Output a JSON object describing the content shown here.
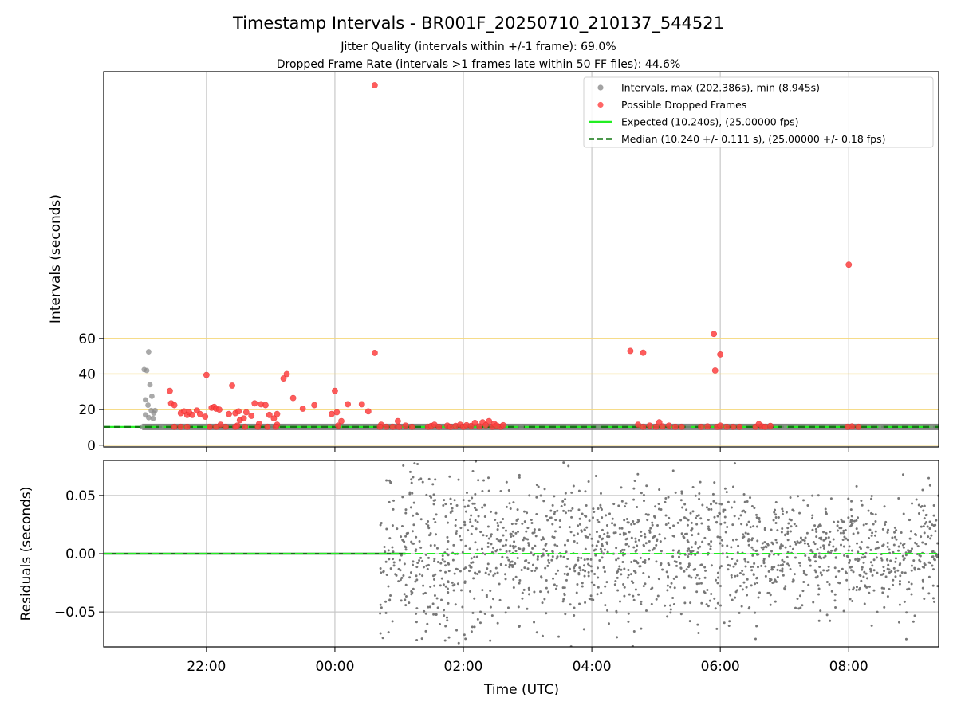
{
  "chart_data": [
    {
      "type": "scatter",
      "title": "Timestamp Intervals - BR001F_20250710_210137_544521",
      "subtitle_lines": [
        "Jitter Quality (intervals within +/-1 frame): 69.0%",
        "Dropped Frame Rate (intervals >1 frames late within 50 FF files): 44.6%"
      ],
      "ylabel": "Intervals (seconds)",
      "xlim": [
        20.4,
        33.4
      ],
      "ylim": [
        -1,
        210
      ],
      "yticks": [
        0,
        20,
        40,
        60
      ],
      "ytick_labels": [
        "0",
        "20",
        "40",
        "60"
      ],
      "xticks": [
        22,
        24,
        26,
        28,
        30,
        32
      ],
      "grid_x": true,
      "hlines": [
        0,
        10.24,
        20,
        40,
        60
      ],
      "hline_color": "#f5d77a",
      "legend_position": "upper right",
      "legend": [
        {
          "label": "Intervals, max (202.386s), min (8.945s)",
          "kind": "marker",
          "color": "#8c8c8c"
        },
        {
          "label": "Possible Dropped Frames",
          "kind": "marker",
          "color": "#ff4040"
        },
        {
          "label": "Expected (10.240s), (25.00000 fps)",
          "kind": "line",
          "color": "#22ee22"
        },
        {
          "label": "Median (10.240 +/- 0.111 s), (25.00000 +/- 0.18 fps)",
          "kind": "dash",
          "color": "#117711"
        }
      ],
      "series": [
        {
          "name": "Intervals, max (202.386s), min (8.945s)",
          "color": "#8c8c8c",
          "points": [
            [
              21.03,
              42.5
            ],
            [
              21.07,
              42
            ],
            [
              21.1,
              52.5
            ],
            [
              21.05,
              25.5
            ],
            [
              21.09,
              22.5
            ],
            [
              21.12,
              34
            ],
            [
              21.15,
              27.5
            ],
            [
              21.14,
              19.5
            ],
            [
              21.18,
              18
            ],
            [
              21.05,
              17
            ],
            [
              21.1,
              15.5
            ],
            [
              21.17,
              15
            ],
            [
              21.2,
              19.5
            ],
            [
              21.0,
              10.3
            ],
            [
              21.3,
              10.3
            ],
            [
              23.0,
              10.2
            ],
            [
              25.0,
              10.1
            ],
            [
              26.9,
              10.3
            ],
            [
              28.1,
              10.2
            ],
            [
              29.5,
              10.2
            ],
            [
              31.0,
              10.3
            ],
            [
              32.5,
              10.2
            ],
            [
              33.3,
              10.3
            ]
          ]
        },
        {
          "name": "Possible Dropped Frames",
          "color": "#ff4040",
          "points": [
            [
              24.62,
              202.4
            ],
            [
              24.62,
              51.9
            ],
            [
              29.9,
              62.5
            ],
            [
              30.0,
              51
            ],
            [
              28.8,
              52
            ],
            [
              28.6,
              53
            ],
            [
              29.92,
              42
            ],
            [
              32.0,
              101.5
            ],
            [
              21.43,
              30.5
            ],
            [
              21.45,
              23.5
            ],
            [
              21.5,
              22.5
            ],
            [
              21.65,
              19
            ],
            [
              21.7,
              17
            ],
            [
              21.78,
              17
            ],
            [
              21.85,
              19.5
            ],
            [
              21.9,
              17.5
            ],
            [
              21.98,
              16
            ],
            [
              22.08,
              21
            ],
            [
              22.12,
              21.5
            ],
            [
              22.15,
              20.5
            ],
            [
              22.2,
              20
            ],
            [
              21.6,
              18
            ],
            [
              21.73,
              18.5
            ],
            [
              22.35,
              17.5
            ],
            [
              22.45,
              18
            ],
            [
              22.52,
              14
            ],
            [
              22.58,
              15
            ],
            [
              22.62,
              18.5
            ],
            [
              22.7,
              16.5
            ],
            [
              22.75,
              23.5
            ],
            [
              22.85,
              23
            ],
            [
              22.92,
              22.5
            ],
            [
              22.98,
              17
            ],
            [
              22.5,
              19
            ],
            [
              23.05,
              15
            ],
            [
              23.1,
              17.5
            ],
            [
              23.2,
              37.5
            ],
            [
              23.25,
              40
            ],
            [
              23.35,
              26.5
            ],
            [
              23.5,
              20.5
            ],
            [
              23.68,
              22.5
            ],
            [
              22.0,
              39.5
            ],
            [
              22.4,
              33.5
            ],
            [
              23.95,
              17.5
            ],
            [
              24.0,
              30.5
            ],
            [
              24.03,
              18.5
            ],
            [
              24.1,
              13.5
            ],
            [
              24.2,
              23
            ],
            [
              24.42,
              23
            ],
            [
              24.52,
              19
            ],
            [
              22.22,
              11.5
            ],
            [
              22.48,
              11
            ],
            [
              22.82,
              12
            ],
            [
              23.1,
              11.5
            ],
            [
              24.05,
              11
            ],
            [
              24.98,
              13.5
            ],
            [
              21.5,
              10.3
            ],
            [
              21.6,
              10.3
            ],
            [
              21.7,
              10.3
            ],
            [
              22.05,
              10.3
            ],
            [
              22.15,
              10.3
            ],
            [
              22.3,
              10.3
            ],
            [
              22.45,
              10.3
            ],
            [
              22.6,
              10.3
            ],
            [
              22.8,
              10.3
            ],
            [
              22.95,
              10.3
            ],
            [
              23.08,
              10.3
            ],
            [
              24.72,
              11.5
            ],
            [
              24.7,
              10.3
            ],
            [
              24.8,
              10.3
            ],
            [
              24.9,
              10.3
            ],
            [
              25.0,
              10.3
            ],
            [
              25.1,
              11
            ],
            [
              25.2,
              10.3
            ],
            [
              25.45,
              10.3
            ],
            [
              25.5,
              10.8
            ],
            [
              25.55,
              11.5
            ],
            [
              25.62,
              10.3
            ],
            [
              25.75,
              11
            ],
            [
              25.8,
              10.3
            ],
            [
              25.88,
              10.8
            ],
            [
              25.95,
              11.5
            ],
            [
              26.0,
              10.3
            ],
            [
              26.05,
              11.2
            ],
            [
              26.12,
              10.8
            ],
            [
              26.18,
              12.5
            ],
            [
              26.25,
              10.5
            ],
            [
              26.3,
              12.8
            ],
            [
              26.35,
              11.2
            ],
            [
              26.4,
              13.5
            ],
            [
              26.45,
              10.3
            ],
            [
              26.48,
              12
            ],
            [
              26.52,
              11
            ],
            [
              26.58,
              10.3
            ],
            [
              26.62,
              11.2
            ],
            [
              28.72,
              11.5
            ],
            [
              28.8,
              10.3
            ],
            [
              28.9,
              11
            ],
            [
              29.0,
              10.3
            ],
            [
              29.05,
              12.8
            ],
            [
              29.1,
              10.5
            ],
            [
              29.2,
              11
            ],
            [
              29.3,
              10.3
            ],
            [
              29.4,
              10.3
            ],
            [
              29.7,
              10.3
            ],
            [
              29.8,
              10.5
            ],
            [
              29.95,
              10.3
            ],
            [
              30.0,
              11
            ],
            [
              30.1,
              10.3
            ],
            [
              30.2,
              10.3
            ],
            [
              30.3,
              10.3
            ],
            [
              30.55,
              10.3
            ],
            [
              30.6,
              11.8
            ],
            [
              30.65,
              10.5
            ],
            [
              30.7,
              10.3
            ],
            [
              30.78,
              10.8
            ],
            [
              31.98,
              10.3
            ],
            [
              32.05,
              10.5
            ],
            [
              32.15,
              10.3
            ]
          ]
        },
        {
          "name": "Expected (10.240s), (25.00000 fps)",
          "kind": "line",
          "y": 10.24,
          "color": "#22ee22"
        },
        {
          "name": "Median (10.240 +/- 0.111 s), (25.00000 +/- 0.18 fps)",
          "kind": "line",
          "y": 10.24,
          "dashed": true,
          "color": "#117711"
        }
      ],
      "dense_band": {
        "x": [
          21.0,
          33.4
        ],
        "y": 10.24,
        "color": "#777777"
      }
    },
    {
      "type": "scatter",
      "ylabel": "Residuals (seconds)",
      "xlabel": "Time (UTC)",
      "xlim": [
        20.4,
        33.4
      ],
      "ylim": [
        -0.08,
        0.08
      ],
      "yticks": [
        -0.05,
        0.0,
        0.05
      ],
      "ytick_labels": [
        "−0.05",
        "0.00",
        "0.05"
      ],
      "xticks": [
        22,
        24,
        26,
        28,
        30,
        32
      ],
      "xtick_labels": [
        "22:00",
        "00:00",
        "02:00",
        "04:00",
        "06:00",
        "08:00"
      ],
      "grid": true,
      "reference_line": {
        "y": 0,
        "color": "#22ee22"
      },
      "flat_segment": {
        "x": [
          20.4,
          25.1
        ],
        "y": 0,
        "color": "#117711"
      },
      "point_color": "#777777",
      "residual_spread": [
        {
          "x": [
            24.7,
            26.5
          ],
          "sd": 0.042
        },
        {
          "x": [
            26.5,
            28.5
          ],
          "sd": 0.028
        },
        {
          "x": [
            28.5,
            30.5
          ],
          "sd": 0.032
        },
        {
          "x": [
            30.5,
            32.0
          ],
          "sd": 0.022
        },
        {
          "x": [
            32.0,
            33.4
          ],
          "sd": 0.025
        }
      ]
    }
  ]
}
